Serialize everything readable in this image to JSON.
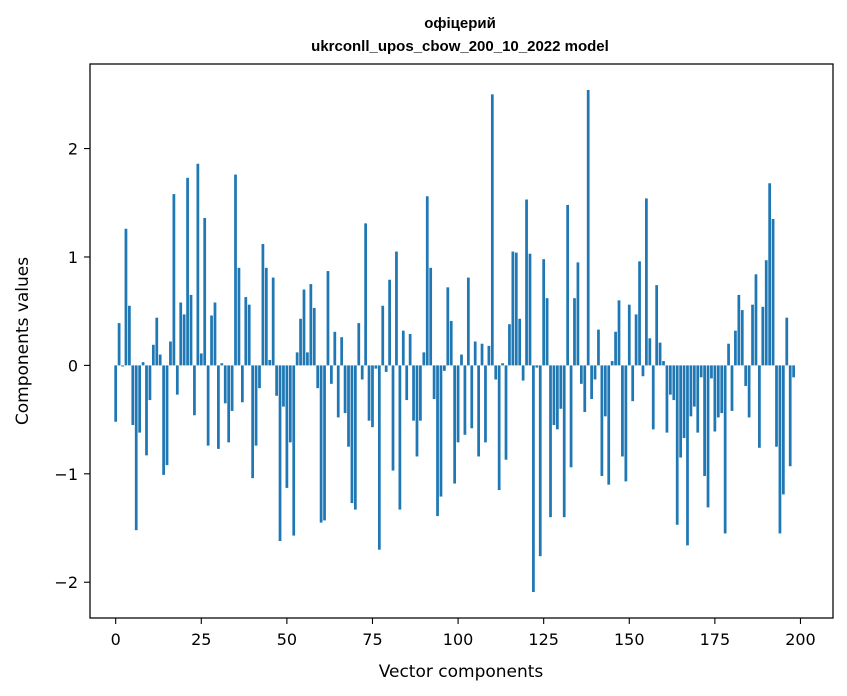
{
  "chart_data": {
    "type": "bar",
    "title": "офіцерий",
    "subtitle": "ukrconll_upos_cbow_200_10_2022 model",
    "xlabel": "Vector components",
    "ylabel": "Components values",
    "xlim": [
      -7.5,
      209.5
    ],
    "ylim": [
      -2.33,
      2.78
    ],
    "xticks": [
      0,
      25,
      50,
      75,
      100,
      125,
      150,
      175,
      200
    ],
    "xtick_labels": [
      "0",
      "25",
      "50",
      "75",
      "100",
      "125",
      "150",
      "175",
      "200"
    ],
    "yticks": [
      -2,
      -1,
      0,
      1,
      2
    ],
    "ytick_labels": [
      "−2",
      "−1",
      "0",
      "1",
      "2"
    ],
    "bar_color": "#1f77b4",
    "grid": false,
    "values": [
      -0.52,
      0.39,
      -0.01,
      1.26,
      0.55,
      -0.55,
      -1.52,
      -0.62,
      0.03,
      -0.83,
      -0.32,
      0.19,
      0.44,
      0.1,
      -1.01,
      -0.92,
      0.22,
      1.58,
      -0.27,
      0.58,
      0.47,
      1.73,
      0.65,
      -0.46,
      1.86,
      0.11,
      1.36,
      -0.74,
      0.46,
      0.58,
      -0.77,
      0.02,
      -0.35,
      -0.71,
      -0.42,
      1.76,
      0.9,
      -0.34,
      0.63,
      0.56,
      -1.04,
      -0.74,
      -0.21,
      1.12,
      0.9,
      0.05,
      0.81,
      -0.28,
      -1.62,
      -0.38,
      -1.13,
      -0.71,
      -1.57,
      0.12,
      0.43,
      0.7,
      0.12,
      0.75,
      0.53,
      -0.21,
      -1.45,
      -1.43,
      0.87,
      -0.17,
      0.31,
      -0.48,
      0.26,
      -0.44,
      -0.75,
      -1.27,
      -1.33,
      0.39,
      -0.13,
      1.31,
      -0.51,
      -0.57,
      -0.03,
      -1.7,
      0.55,
      -0.06,
      0.79,
      -0.97,
      1.05,
      -1.33,
      0.32,
      -0.32,
      0.29,
      -0.51,
      -0.84,
      -0.51,
      0.12,
      1.56,
      0.9,
      -0.31,
      -1.39,
      -1.21,
      -0.05,
      0.72,
      0.41,
      -1.09,
      -0.71,
      0.1,
      -0.64,
      0.81,
      -0.58,
      0.22,
      -0.84,
      0.2,
      -0.71,
      0.18,
      2.5,
      -0.13,
      -1.15,
      0.02,
      -0.87,
      0.38,
      1.05,
      1.04,
      0.43,
      -0.14,
      1.53,
      1.03,
      -2.09,
      -0.02,
      -1.76,
      0.98,
      0.62,
      -1.4,
      -0.55,
      -0.59,
      -0.4,
      -1.4,
      1.48,
      -0.94,
      0.62,
      0.95,
      -0.17,
      -0.43,
      2.54,
      -0.31,
      -0.13,
      0.33,
      -1.02,
      -0.47,
      -1.1,
      0.04,
      0.31,
      0.6,
      -0.84,
      -1.07,
      0.56,
      -0.33,
      0.47,
      0.96,
      -0.1,
      1.54,
      0.25,
      -0.59,
      0.74,
      0.21,
      0.04,
      -0.62,
      -0.27,
      -0.32,
      -1.47,
      -0.85,
      -0.67,
      -1.66,
      -0.47,
      -0.38,
      -0.62,
      -0.11,
      -1.02,
      -1.31,
      -0.12,
      -0.61,
      -0.48,
      -0.44,
      -1.55,
      0.2,
      -0.42,
      0.32,
      0.65,
      0.51,
      -0.19,
      -0.48,
      0.56,
      0.84,
      -0.76,
      0.54,
      0.97,
      1.68,
      1.35,
      -0.75,
      -1.55,
      -1.19,
      0.44,
      -0.93,
      -0.11
    ]
  }
}
